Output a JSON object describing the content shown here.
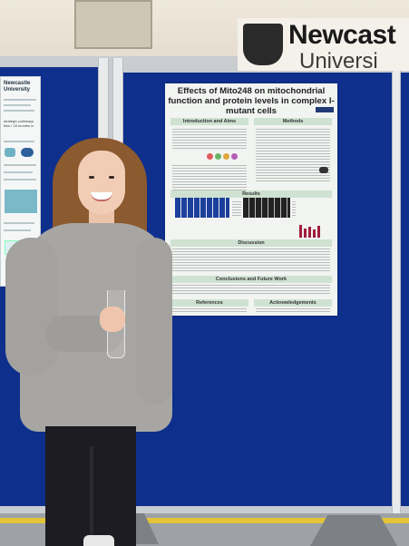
{
  "background_sign": {
    "university_name": "Newcast",
    "university_name_line2": "Universi"
  },
  "left_poster": {
    "logo_line1": "Newcastle",
    "logo_line2": "University",
    "caption": "strategic pathways flow / 18 months in"
  },
  "poster": {
    "title": "Effects of Mito248 on mitochondrial function and protein levels in complex I-mutant cells",
    "sections": {
      "intro": "Introduction and Aims",
      "methods": "Methods",
      "results": "Results",
      "discussion": "Discussion",
      "conclusions": "Conclusions and Future Work",
      "references": "References",
      "acknowledgements": "Acknowledgements"
    }
  },
  "colors": {
    "board_blue": "#0e2f8c",
    "poster_header_green": "#cfe2d2",
    "sweater_grey": "#a7a6a3",
    "floor_stripe": "#e2c33a"
  }
}
